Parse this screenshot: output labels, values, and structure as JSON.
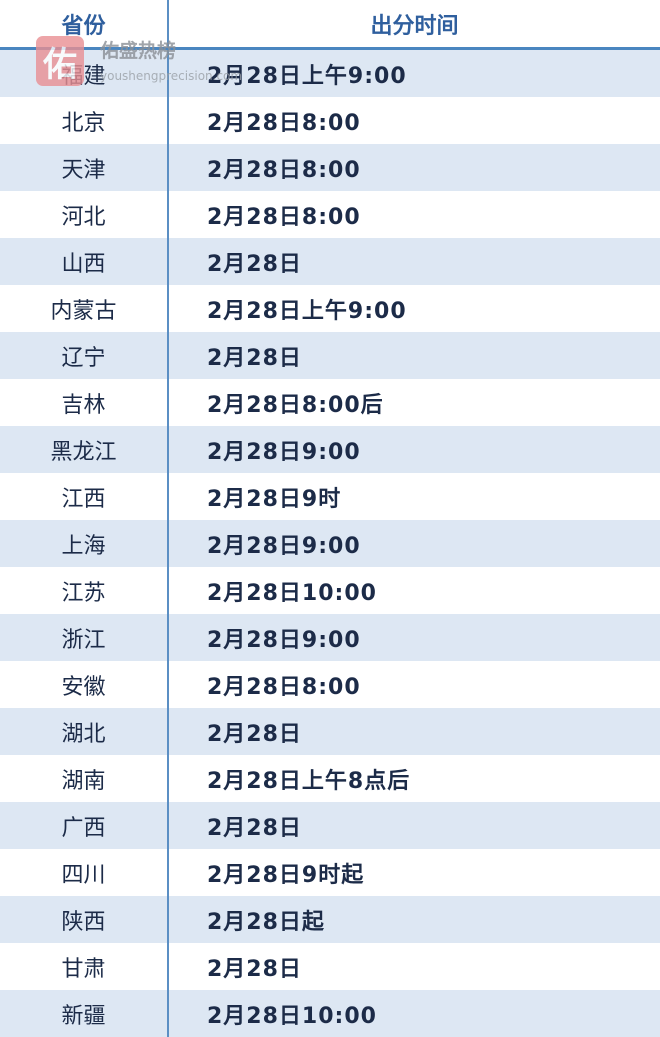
{
  "table": {
    "headers": [
      "省份",
      "出分时间"
    ],
    "rows": [
      {
        "province": "福建",
        "time": "2月28日上午9:00"
      },
      {
        "province": "北京",
        "time": "2月28日8:00"
      },
      {
        "province": "天津",
        "time": "2月28日8:00"
      },
      {
        "province": "河北",
        "time": "2月28日8:00"
      },
      {
        "province": "山西",
        "time": "2月28日"
      },
      {
        "province": "内蒙古",
        "time": "2月28日上午9:00"
      },
      {
        "province": "辽宁",
        "time": "2月28日"
      },
      {
        "province": "吉林",
        "time": "2月28日8:00后"
      },
      {
        "province": "黑龙江",
        "time": "2月28日9:00"
      },
      {
        "province": "江西",
        "time": "2月28日9时"
      },
      {
        "province": "上海",
        "time": "2月28日9:00"
      },
      {
        "province": "江苏",
        "time": "2月28日10:00"
      },
      {
        "province": "浙江",
        "time": "2月28日9:00"
      },
      {
        "province": "安徽",
        "time": "2月28日8:00"
      },
      {
        "province": "湖北",
        "time": "2月28日"
      },
      {
        "province": "湖南",
        "time": "2月28日上午8点后"
      },
      {
        "province": "广西",
        "time": "2月28日"
      },
      {
        "province": "四川",
        "time": "2月28日9时起"
      },
      {
        "province": "陕西",
        "time": "2月28日起"
      },
      {
        "province": "甘肃",
        "time": "2月28日"
      },
      {
        "province": "新疆",
        "time": "2月28日10:00"
      }
    ]
  },
  "watermark": {
    "logo_char": "佑",
    "title": "佑盛热榜",
    "url": "youshengprecision.com"
  },
  "colors": {
    "header_text": "#2f5f9e",
    "row_shade": "#dde7f3",
    "divider": "#5b8fc4",
    "body_text": "#1c2b48"
  }
}
